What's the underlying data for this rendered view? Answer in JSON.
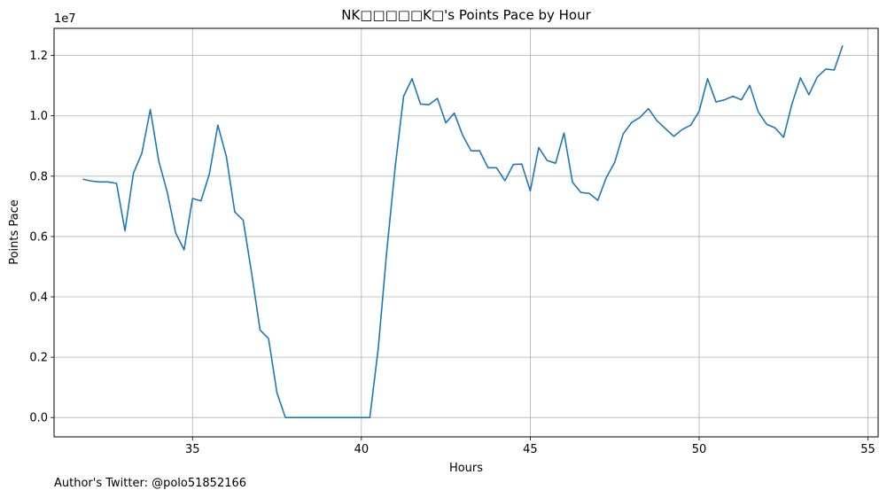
{
  "footer_text": "Author's Twitter: @polo51852166",
  "chart_data": {
    "type": "line",
    "title": "NK□□□□□K□'s Points Pace by Hour",
    "xlabel": "Hours",
    "ylabel": "Points Pace",
    "y_multiplier_label": "1e7",
    "xlim": [
      30.9,
      55.3
    ],
    "ylim": [
      -0.064,
      1.29
    ],
    "x_ticks": [
      35,
      40,
      45,
      50,
      55
    ],
    "y_ticks": [
      0.0,
      0.2,
      0.4,
      0.6,
      0.8,
      1.0,
      1.2
    ],
    "y_tick_labels": [
      "0.0",
      "0.2",
      "0.4",
      "0.6",
      "0.8",
      "1.0",
      "1.2"
    ],
    "grid": true,
    "line_color": "#1f77b4",
    "series": [
      {
        "x": [
          31.75,
          32.0,
          32.25,
          32.5,
          32.75,
          33.0,
          33.25,
          33.5,
          33.75,
          34.0,
          34.25,
          34.5,
          34.75,
          35.0,
          35.25,
          35.5,
          35.75,
          36.0,
          36.25,
          36.5,
          36.75,
          37.0,
          37.25,
          37.5,
          37.75,
          38.0,
          38.25,
          38.5,
          38.75,
          39.0,
          39.25,
          39.5,
          39.75,
          40.0,
          40.25,
          40.5,
          40.75,
          41.0,
          41.25,
          41.5,
          41.75,
          42.0,
          42.25,
          42.5,
          42.75,
          43.0,
          43.25,
          43.5,
          43.75,
          44.0,
          44.25,
          44.5,
          44.75,
          45.0,
          45.25,
          45.5,
          45.75,
          46.0,
          46.25,
          46.5,
          46.75,
          47.0,
          47.25,
          47.5,
          47.75,
          48.0,
          48.25,
          48.5,
          48.75,
          49.0,
          49.25,
          49.5,
          49.75,
          50.0,
          50.25,
          50.5,
          50.75,
          51.0,
          51.25,
          51.5,
          51.75,
          52.0,
          52.25,
          52.5,
          52.75,
          53.0,
          53.25,
          53.5,
          53.75,
          54.0,
          54.25
        ],
        "y": [
          0.79,
          0.784,
          0.781,
          0.781,
          0.776,
          0.619,
          0.81,
          0.876,
          1.021,
          0.85,
          0.748,
          0.612,
          0.556,
          0.726,
          0.718,
          0.808,
          0.969,
          0.866,
          0.682,
          0.654,
          0.479,
          0.29,
          0.262,
          0.082,
          0.0,
          0.0,
          0.0,
          0.0,
          0.0,
          0.0,
          0.0,
          0.0,
          0.0,
          0.0,
          0.0,
          0.23,
          0.55,
          0.83,
          1.065,
          1.123,
          1.039,
          1.037,
          1.058,
          0.977,
          1.009,
          0.935,
          0.884,
          0.884,
          0.828,
          0.828,
          0.785,
          0.839,
          0.84,
          0.751,
          0.895,
          0.852,
          0.843,
          0.943,
          0.78,
          0.746,
          0.743,
          0.72,
          0.795,
          0.846,
          0.94,
          0.978,
          0.995,
          1.024,
          0.984,
          0.958,
          0.932,
          0.955,
          0.969,
          1.015,
          1.123,
          1.046,
          1.053,
          1.065,
          1.053,
          1.101,
          1.013,
          0.972,
          0.96,
          0.929,
          1.04,
          1.126,
          1.07,
          1.129,
          1.155,
          1.152,
          1.233
        ]
      }
    ]
  }
}
